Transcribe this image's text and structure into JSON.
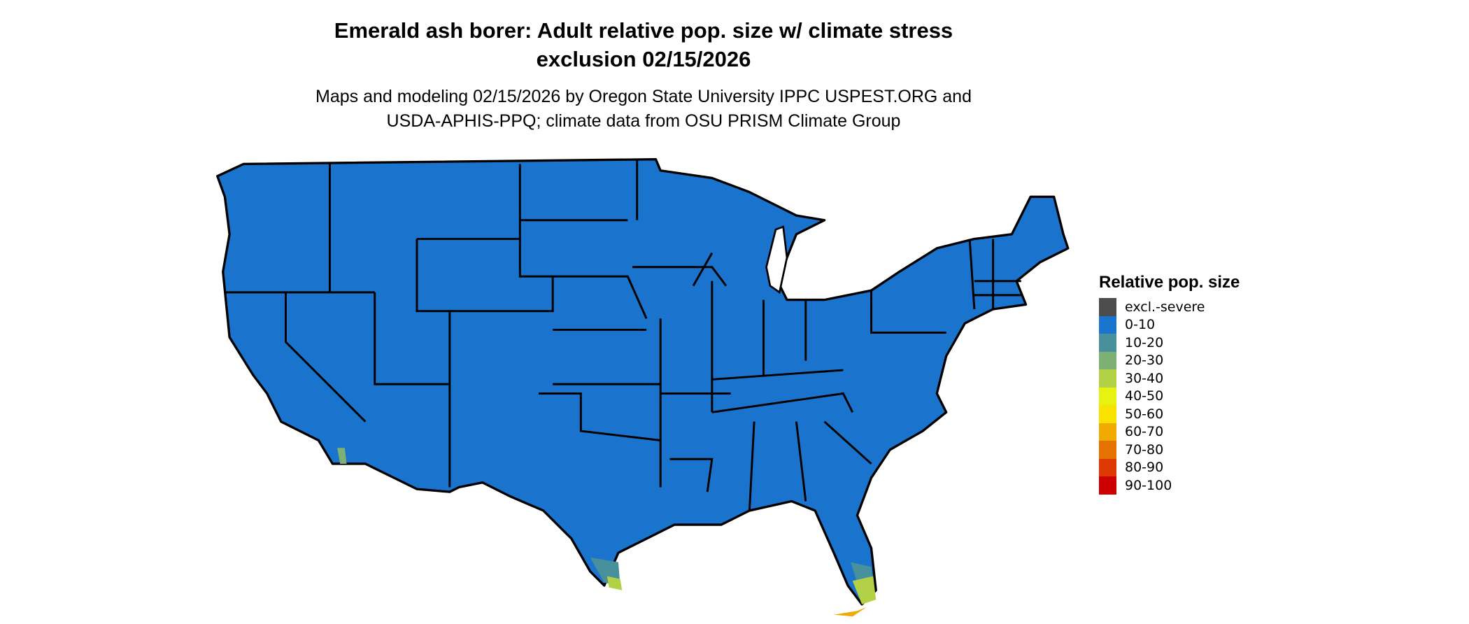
{
  "title": {
    "line1": "Emerald ash borer: Adult relative pop. size w/ climate stress",
    "line2": "exclusion 02/15/2026"
  },
  "subtitle": {
    "line1": "Maps and modeling 02/15/2026 by Oregon State University IPPC USPEST.ORG and",
    "line2": "USDA-APHIS-PPQ; climate data from OSU PRISM Climate Group"
  },
  "map": {
    "region": "Contiguous United States",
    "dominant_class": "0-10",
    "border_color": "#000000"
  },
  "legend": {
    "title": "Relative pop. size",
    "items": [
      {
        "label": "excl.-severe",
        "color": "#4d4d4d"
      },
      {
        "label": "0-10",
        "color": "#1a73cc"
      },
      {
        "label": "10-20",
        "color": "#48909c"
      },
      {
        "label": "20-30",
        "color": "#7fb073"
      },
      {
        "label": "30-40",
        "color": "#b3d147"
      },
      {
        "label": "40-50",
        "color": "#e5f212"
      },
      {
        "label": "50-60",
        "color": "#f9e100"
      },
      {
        "label": "60-70",
        "color": "#f0aa00"
      },
      {
        "label": "70-80",
        "color": "#e57200"
      },
      {
        "label": "80-90",
        "color": "#dc3800"
      },
      {
        "label": "90-100",
        "color": "#cc0000"
      }
    ]
  }
}
